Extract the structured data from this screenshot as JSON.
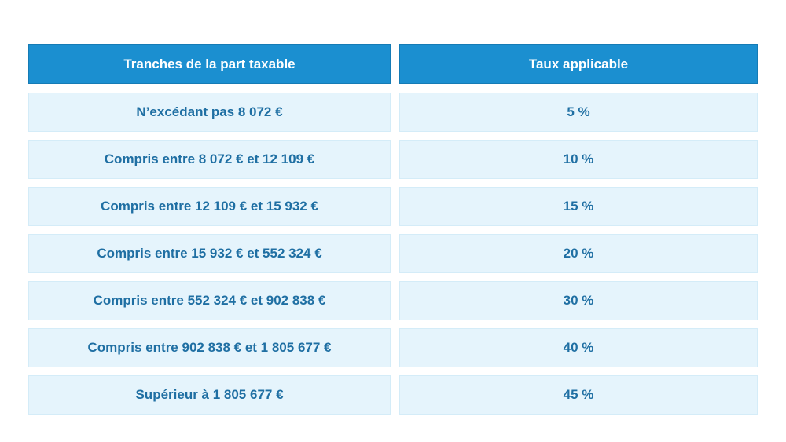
{
  "table": {
    "headers": [
      "Tranches de la part taxable",
      "Taux applicable"
    ],
    "rows": [
      {
        "bracket": "N’excédant pas 8 072 €",
        "rate": "5 %"
      },
      {
        "bracket": "Compris entre 8 072 € et 12 109 €",
        "rate": "10 %"
      },
      {
        "bracket": "Compris entre 12 109 € et 15 932 €",
        "rate": "15 %"
      },
      {
        "bracket": "Compris entre 15 932 € et 552 324 €",
        "rate": "20 %"
      },
      {
        "bracket": "Compris entre 552 324 € et 902 838 €",
        "rate": "30 %"
      },
      {
        "bracket": "Compris entre 902 838 € et 1 805 677 €",
        "rate": "40 %"
      },
      {
        "bracket": "Supérieur à 1 805 677 €",
        "rate": "45 %"
      }
    ]
  },
  "colors": {
    "header_bg": "#1b8fd0",
    "header_text": "#ffffff",
    "row_bg": "#e5f4fc",
    "row_text": "#1f6fa3"
  }
}
